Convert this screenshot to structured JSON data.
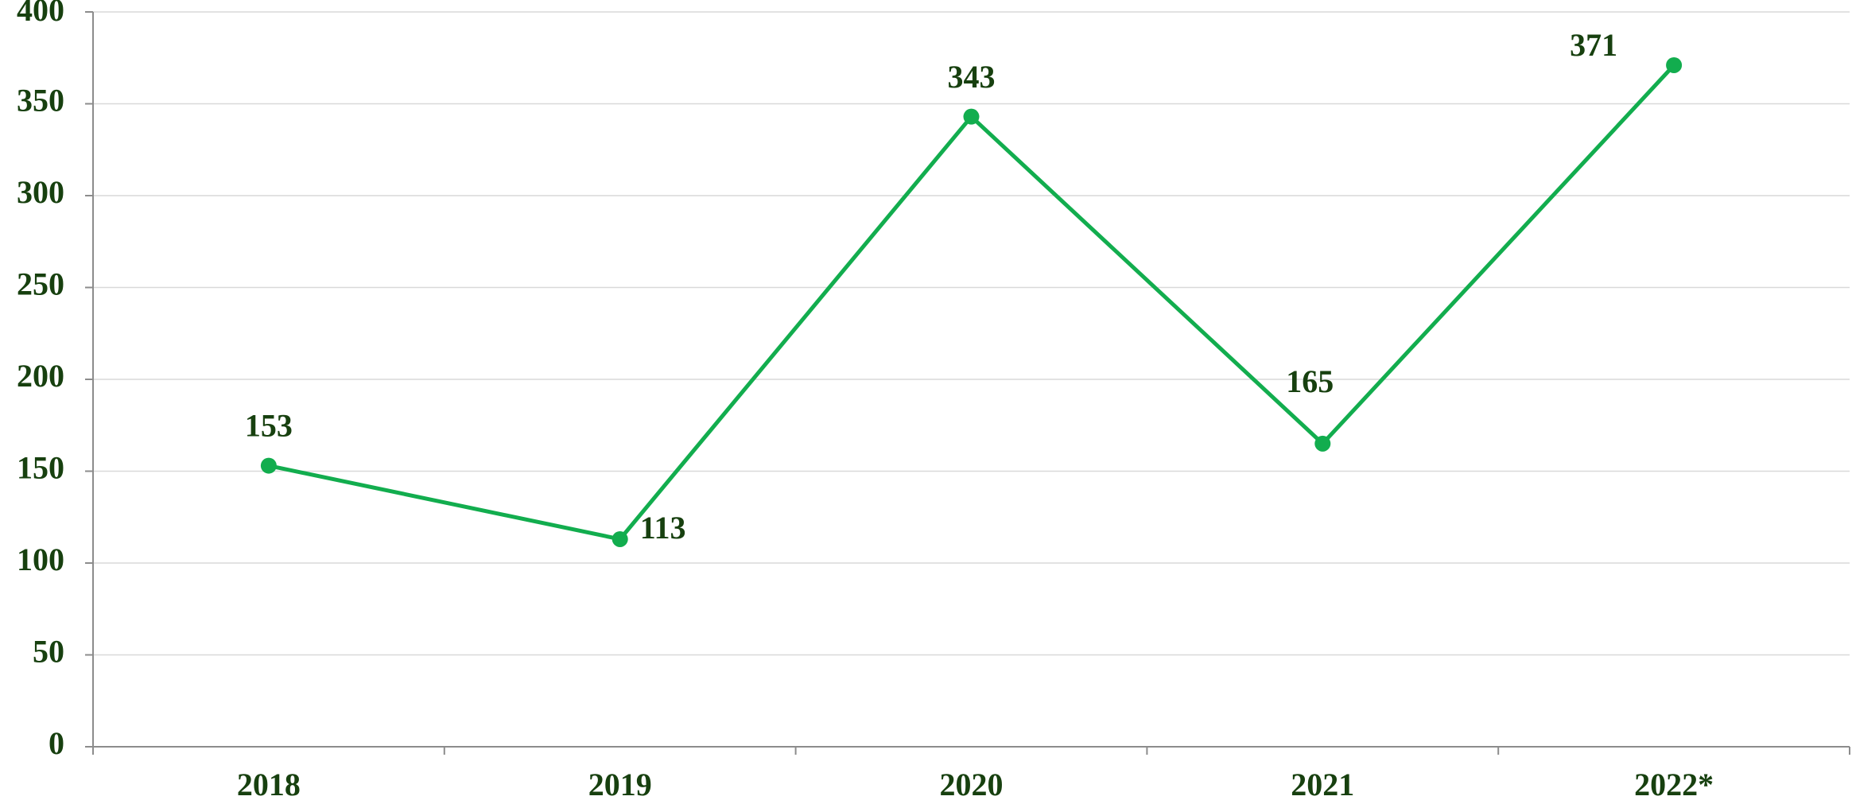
{
  "chart_data": {
    "type": "line",
    "categories": [
      "2018",
      "2019",
      "2020",
      "2021",
      "2022*"
    ],
    "series": [
      {
        "color": "#12ad4e",
        "values": [
          153,
          113,
          343,
          165,
          371
        ]
      }
    ],
    "ylim": [
      0,
      400
    ],
    "yticks": [
      0,
      50,
      100,
      150,
      200,
      250,
      300,
      350,
      400
    ],
    "grid": true
  }
}
